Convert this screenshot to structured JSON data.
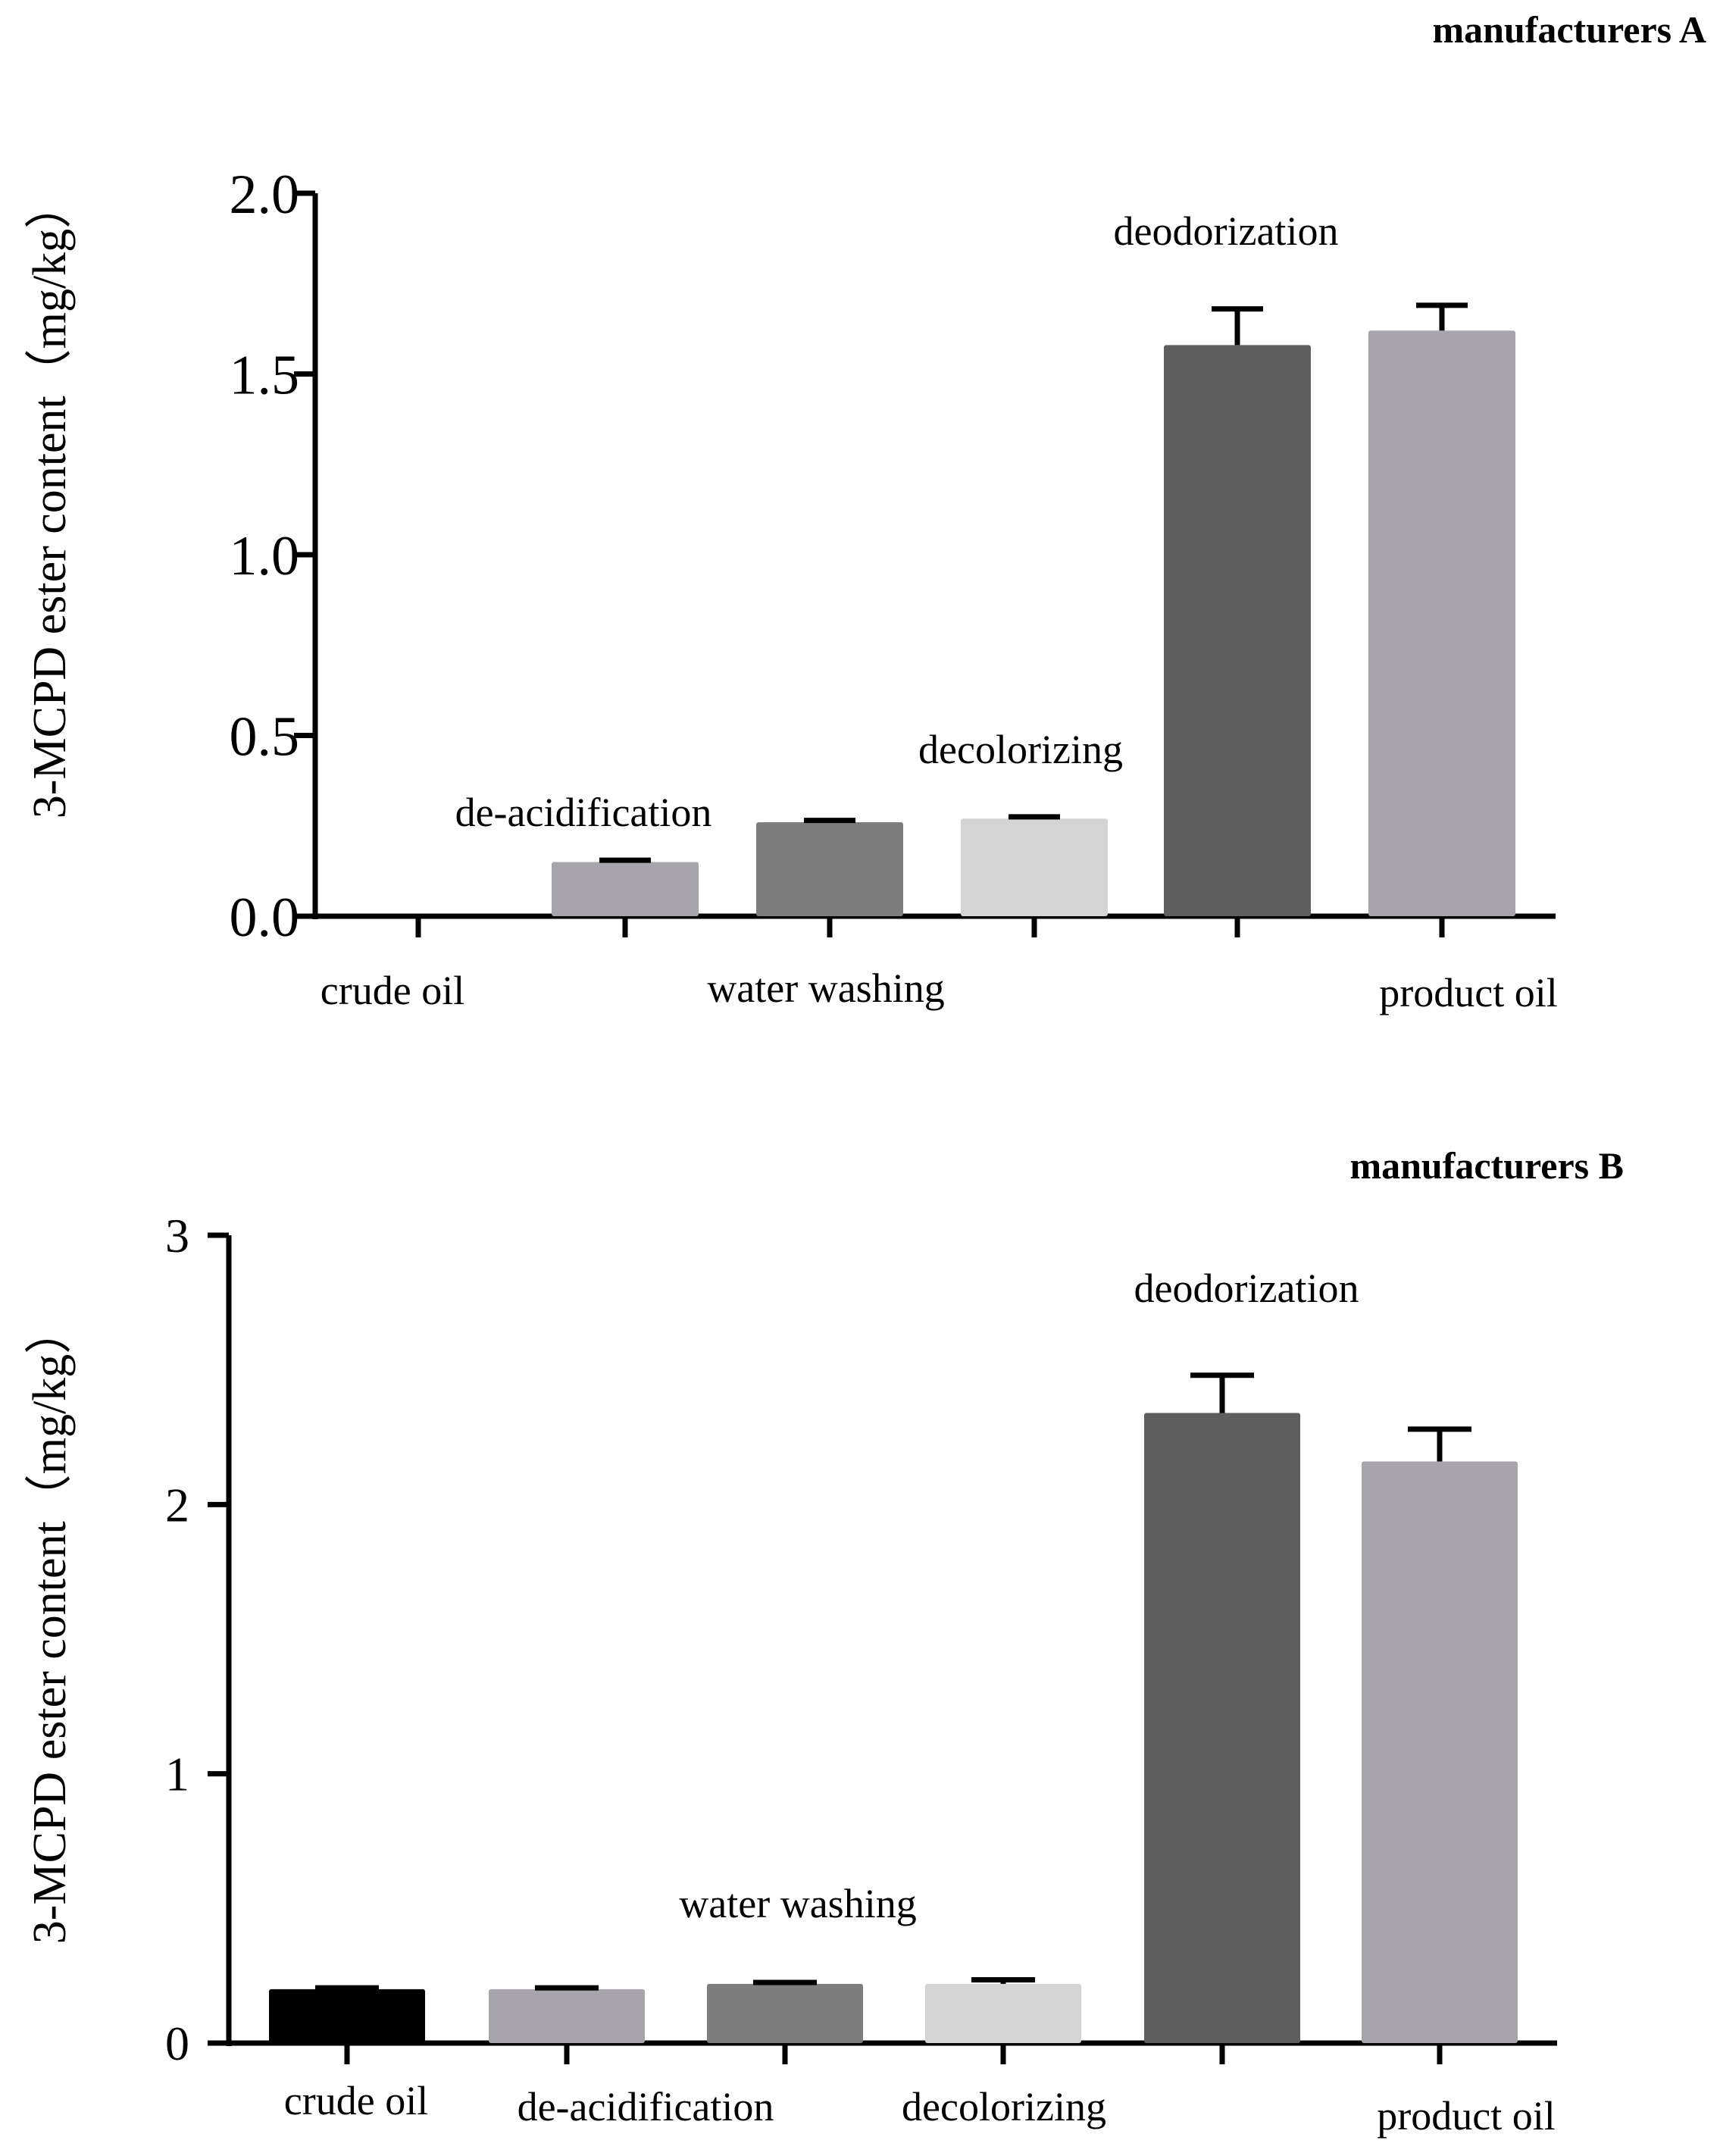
{
  "chart_data": [
    {
      "type": "bar",
      "title": "manufacturers A",
      "ylabel": "3-MCPD ester content（mg/kg）",
      "xlabel": "",
      "ylim": [
        0,
        2.0
      ],
      "yticks": [
        "0.0",
        "0.5",
        "1.0",
        "1.5",
        "2.0"
      ],
      "categories": [
        "crude oil",
        "de-acidification",
        "water washing",
        "decolorizing",
        "deodorization",
        "product oil"
      ],
      "values": [
        0.0,
        0.15,
        0.26,
        0.27,
        1.58,
        1.62
      ],
      "errors": [
        0.0,
        0.005,
        0.005,
        0.005,
        0.1,
        0.07
      ],
      "colors": [
        "#000000",
        "#a7a5ab",
        "#7d7d7d",
        "#d4d4d4",
        "#5e5e5e",
        "#a7a5ab"
      ]
    },
    {
      "type": "bar",
      "title": "manufacturers B",
      "ylabel": "3-MCPD ester content（mg/kg）",
      "xlabel": "",
      "ylim": [
        0,
        3
      ],
      "yticks": [
        "0",
        "1",
        "2",
        "3"
      ],
      "categories": [
        "crude oil",
        "de-acidification",
        "water washing",
        "decolorizing",
        "deodorization",
        "product oil"
      ],
      "values": [
        0.2,
        0.2,
        0.22,
        0.22,
        2.34,
        2.16
      ],
      "errors": [
        0.005,
        0.005,
        0.005,
        0.015,
        0.14,
        0.12
      ],
      "colors": [
        "#000000",
        "#a7a5ab",
        "#7d7d7d",
        "#d4d4d4",
        "#5e5e5e",
        "#a7a5ab"
      ]
    }
  ]
}
